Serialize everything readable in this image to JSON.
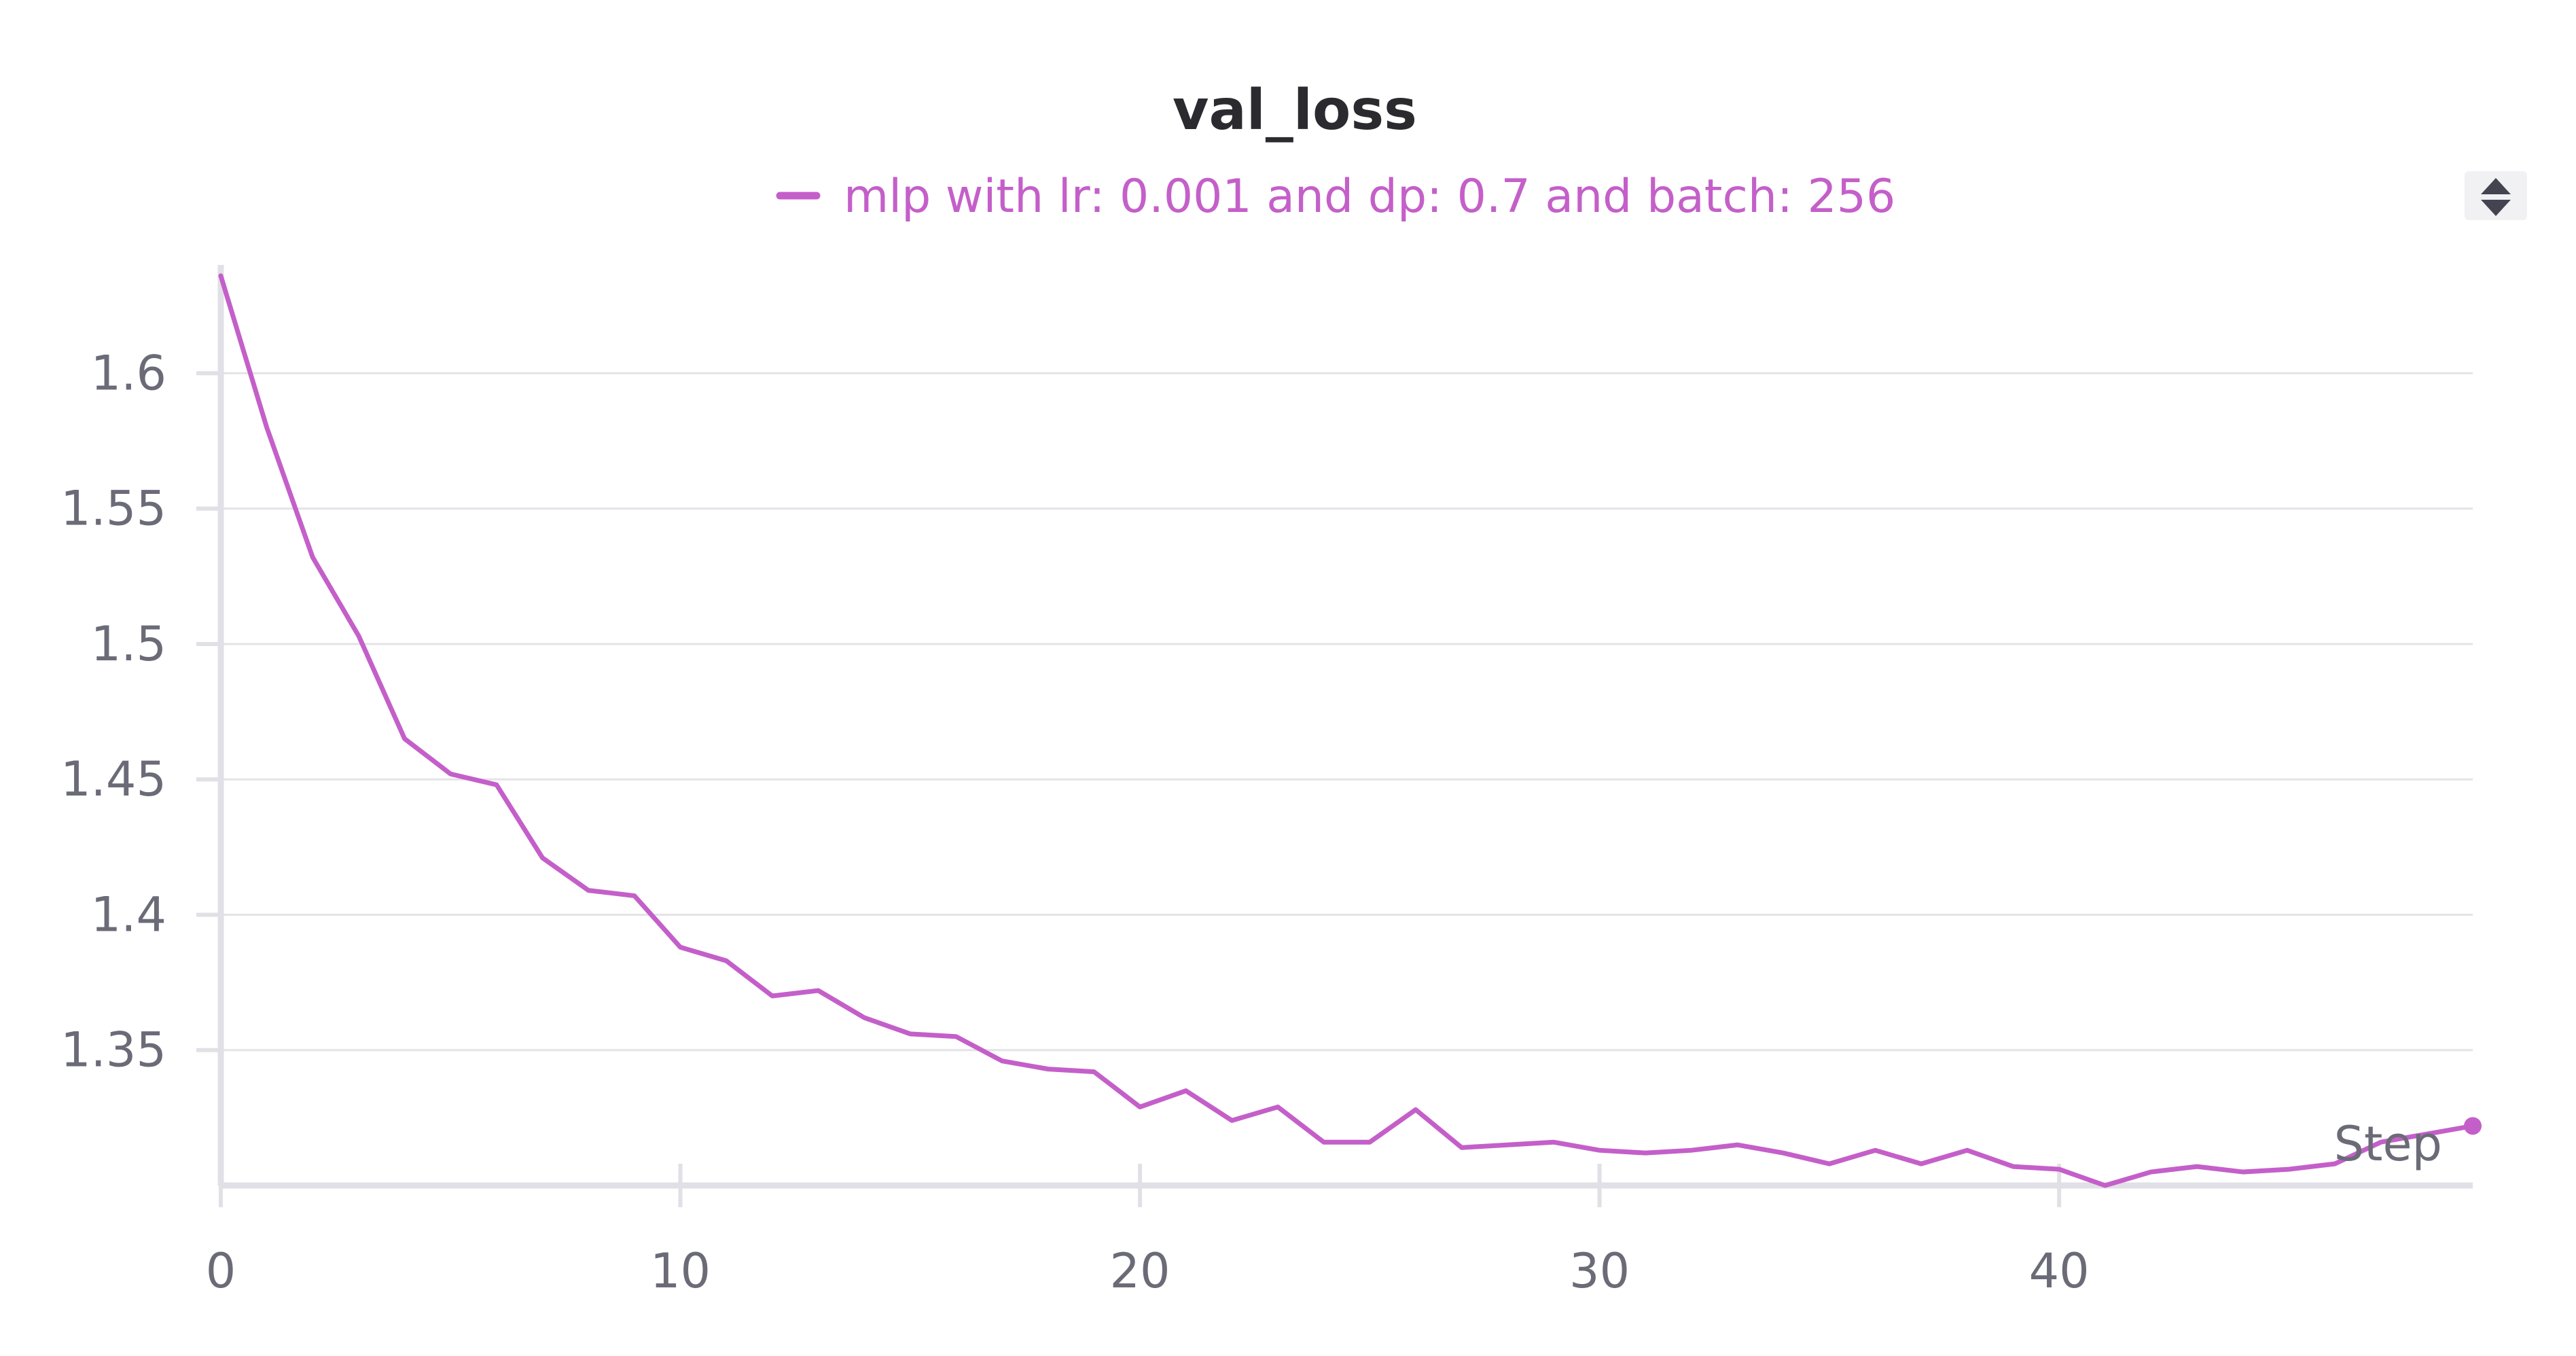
{
  "chart_data": {
    "type": "line",
    "title": "val_loss",
    "xlabel": "Step",
    "ylabel": "",
    "xlim": [
      0,
      49
    ],
    "ylim": [
      1.3,
      1.64
    ],
    "x_ticks": [
      0,
      10,
      20,
      30,
      40
    ],
    "y_ticks": [
      1.35,
      1.4,
      1.45,
      1.5,
      1.55,
      1.6
    ],
    "x_tick_labels": [
      "0",
      "10",
      "20",
      "30",
      "40"
    ],
    "y_tick_labels": [
      "1.35",
      "1.4",
      "1.45",
      "1.5",
      "1.55",
      "1.6"
    ],
    "grid": true,
    "legend_position": "top-center",
    "series": [
      {
        "name": "mlp with lr: 0.001 and dp: 0.7 and batch: 256",
        "color": "#c45fc9",
        "x": [
          0,
          1,
          2,
          3,
          4,
          5,
          6,
          7,
          8,
          9,
          10,
          11,
          12,
          13,
          14,
          15,
          16,
          17,
          18,
          19,
          20,
          21,
          22,
          23,
          24,
          25,
          26,
          27,
          28,
          29,
          30,
          31,
          32,
          33,
          34,
          35,
          36,
          37,
          38,
          39,
          40,
          41,
          42,
          43,
          44,
          45,
          46,
          47,
          48,
          49
        ],
        "values": [
          1.636,
          1.58,
          1.532,
          1.503,
          1.465,
          1.452,
          1.448,
          1.421,
          1.409,
          1.407,
          1.388,
          1.383,
          1.37,
          1.372,
          1.362,
          1.356,
          1.355,
          1.346,
          1.343,
          1.342,
          1.329,
          1.335,
          1.324,
          1.329,
          1.316,
          1.316,
          1.328,
          1.314,
          1.315,
          1.316,
          1.313,
          1.312,
          1.313,
          1.315,
          1.312,
          1.308,
          1.313,
          1.308,
          1.313,
          1.307,
          1.306,
          1.3,
          1.305,
          1.307,
          1.305,
          1.306,
          1.308,
          1.316,
          1.319,
          1.322
        ]
      }
    ]
  },
  "ui": {
    "legend_scroll_icon": "up-down-arrows-icon"
  }
}
